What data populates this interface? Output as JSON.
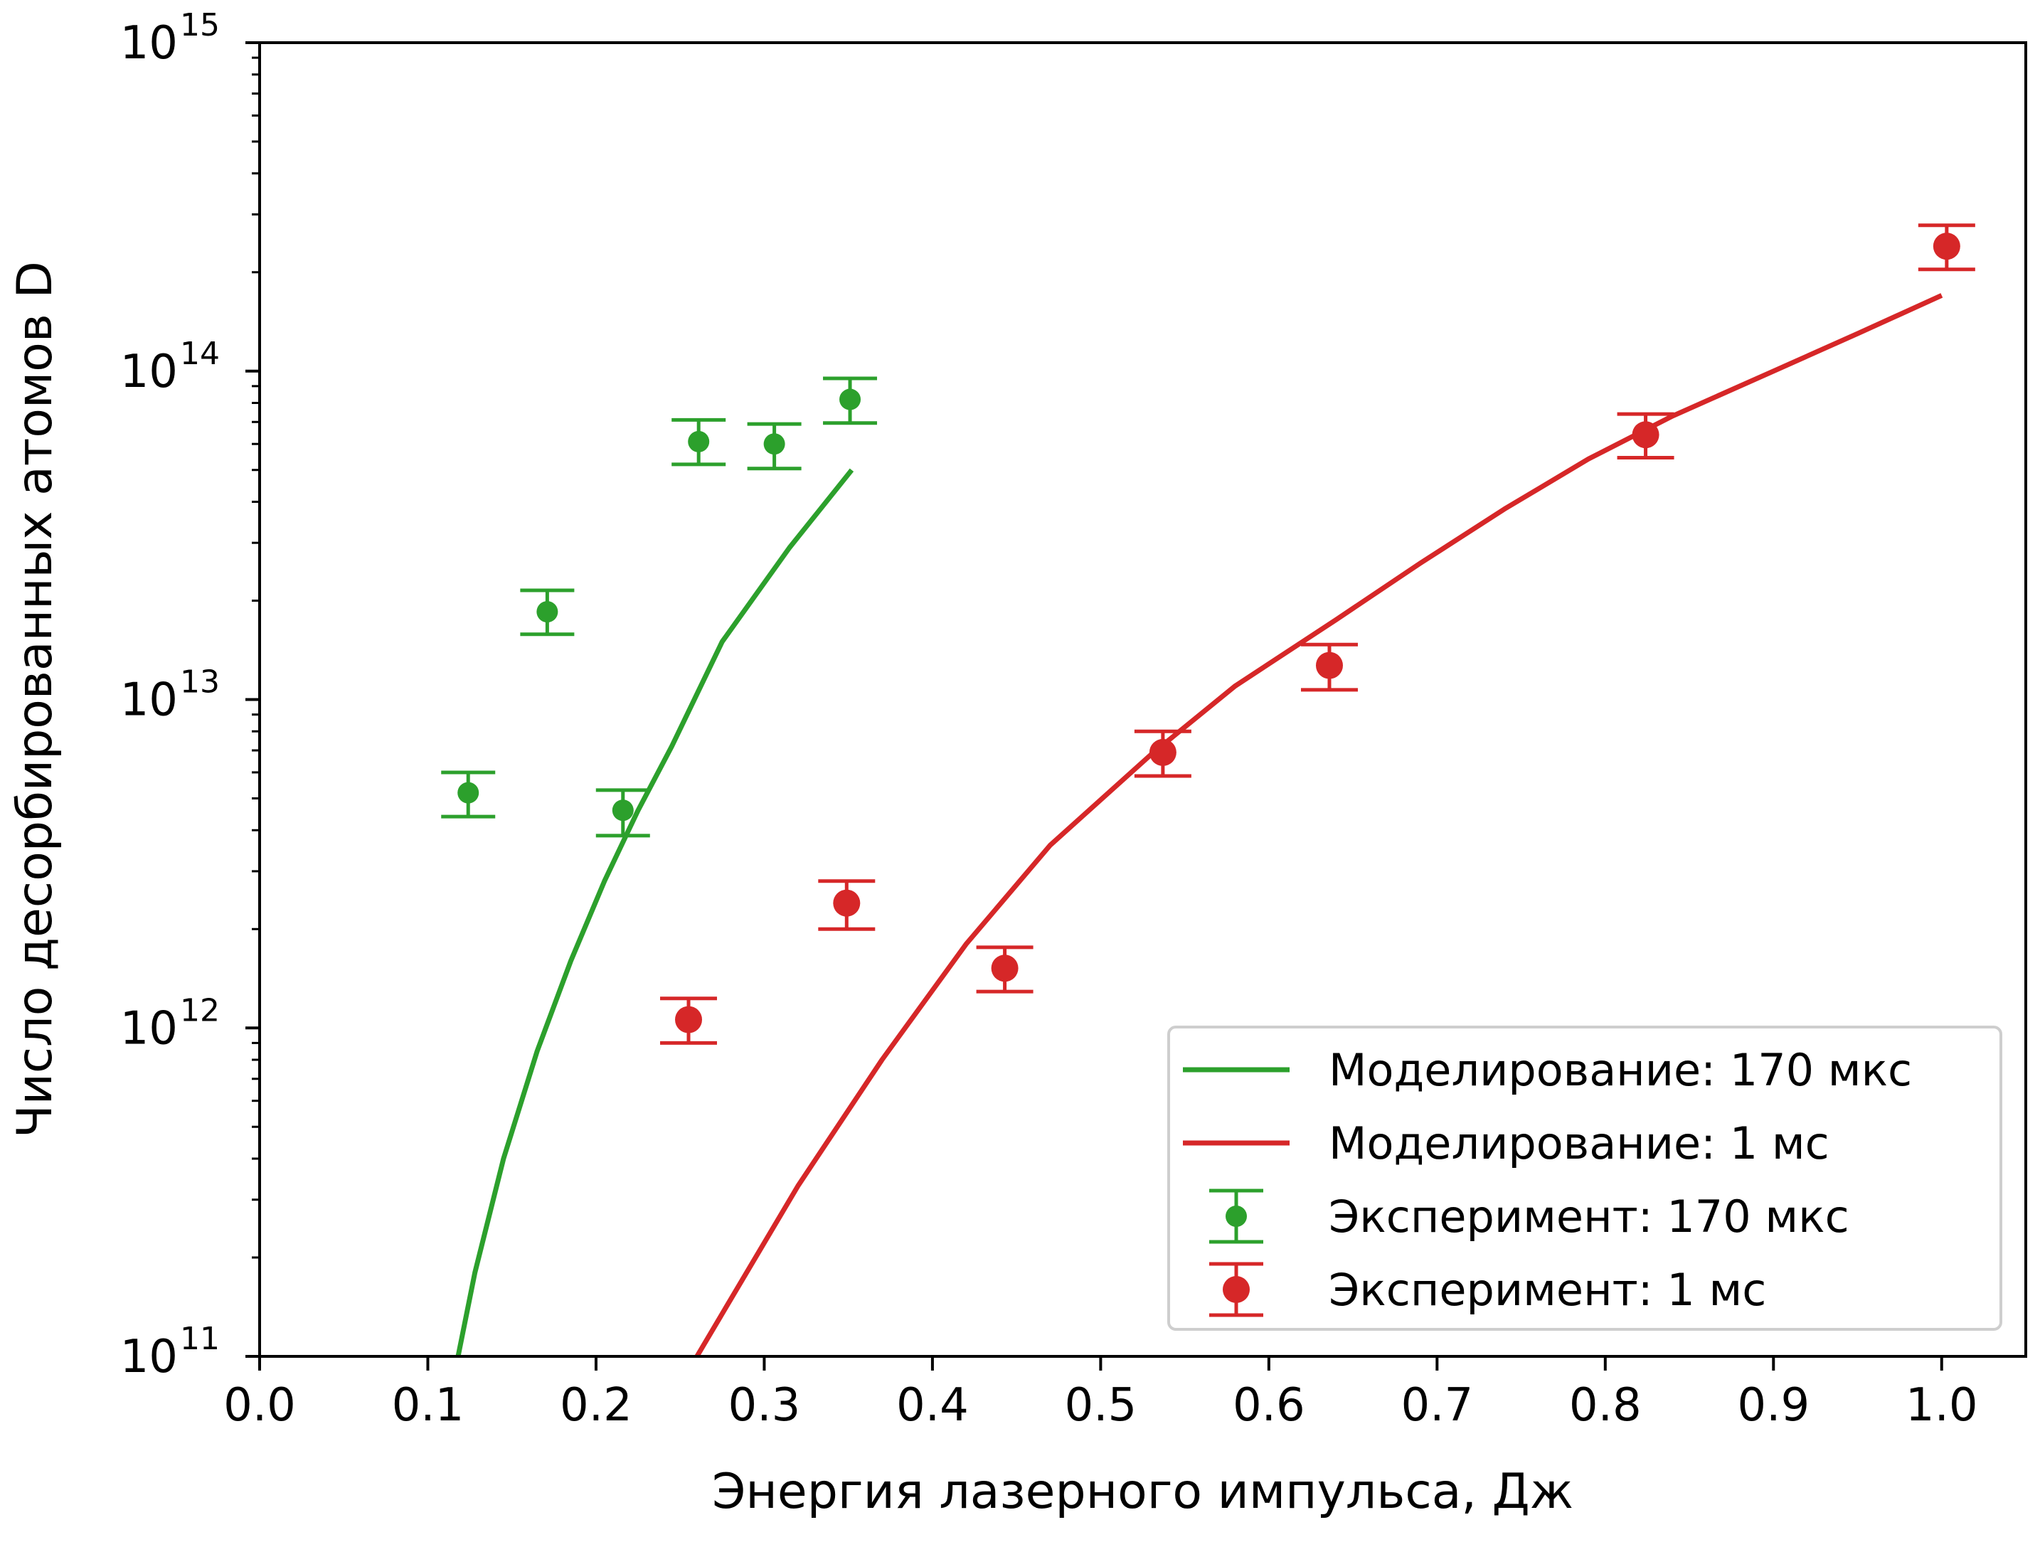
{
  "chart_data": {
    "type": "line",
    "xlabel": "Энергия лазерного импульса, Дж",
    "ylabel": "Число десорбированных атомов D",
    "xlim": [
      0.0,
      1.05
    ],
    "ylim": [
      100000000000.0,
      1000000000000000.0
    ],
    "yscale": "log",
    "grid": false,
    "legend_position": "bottom-right",
    "x_ticks": [
      {
        "value": 0.0,
        "label": "0.0"
      },
      {
        "value": 0.1,
        "label": "0.1"
      },
      {
        "value": 0.2,
        "label": "0.2"
      },
      {
        "value": 0.3,
        "label": "0.3"
      },
      {
        "value": 0.4,
        "label": "0.4"
      },
      {
        "value": 0.5,
        "label": "0.5"
      },
      {
        "value": 0.6,
        "label": "0.6"
      },
      {
        "value": 0.7,
        "label": "0.7"
      },
      {
        "value": 0.8,
        "label": "0.8"
      },
      {
        "value": 0.9,
        "label": "0.9"
      },
      {
        "value": 1.0,
        "label": "1.0"
      }
    ],
    "y_ticks": [
      {
        "value": 100000000000.0,
        "base": "10",
        "exp": "11"
      },
      {
        "value": 1000000000000.0,
        "base": "10",
        "exp": "12"
      },
      {
        "value": 10000000000000.0,
        "base": "10",
        "exp": "13"
      },
      {
        "value": 100000000000000.0,
        "base": "10",
        "exp": "14"
      },
      {
        "value": 1000000000000000.0,
        "base": "10",
        "exp": "15"
      }
    ],
    "series": [
      {
        "name": "Моделирование: 170 мкс",
        "kind": "line",
        "color": "#2ca02c",
        "x": [
          0.118,
          0.128,
          0.145,
          0.165,
          0.185,
          0.205,
          0.225,
          0.245,
          0.275,
          0.315,
          0.352
        ],
        "y": [
          100000000000.0,
          180000000000.0,
          400000000000.0,
          850000000000.0,
          1600000000000.0,
          2800000000000.0,
          4600000000000.0,
          7200000000000.0,
          15000000000000.0,
          29000000000000.0,
          50000000000000.0
        ]
      },
      {
        "name": "Моделирование: 1 мс",
        "kind": "line",
        "color": "#d62728",
        "x": [
          0.26,
          0.32,
          0.37,
          0.42,
          0.47,
          0.53,
          0.58,
          0.64,
          0.69,
          0.74,
          0.79,
          0.84,
          0.9,
          0.95,
          1.0
        ],
        "y": [
          100000000000.0,
          330000000000.0,
          800000000000.0,
          1800000000000.0,
          3600000000000.0,
          6800000000000.0,
          11000000000000.0,
          17500000000000.0,
          26000000000000.0,
          38000000000000.0,
          54000000000000.0,
          73000000000000.0,
          100000000000000.0,
          130000000000000.0,
          170000000000000.0
        ]
      },
      {
        "name": "Эксперимент: 170 мкс",
        "kind": "errorbar",
        "color": "#2ca02c",
        "points": [
          {
            "x": 0.124,
            "y": 5200000000000.0,
            "ylo": 4400000000000.0,
            "yhi": 6000000000000.0
          },
          {
            "x": 0.171,
            "y": 18500000000000.0,
            "ylo": 15800000000000.0,
            "yhi": 21500000000000.0
          },
          {
            "x": 0.216,
            "y": 4600000000000.0,
            "ylo": 3850000000000.0,
            "yhi": 5300000000000.0
          },
          {
            "x": 0.261,
            "y": 61000000000000.0,
            "ylo": 52000000000000.0,
            "yhi": 71000000000000.0
          },
          {
            "x": 0.306,
            "y": 60000000000000.0,
            "ylo": 50500000000000.0,
            "yhi": 69000000000000.0
          },
          {
            "x": 0.351,
            "y": 82000000000000.0,
            "ylo": 69500000000000.0,
            "yhi": 95000000000000.0
          }
        ]
      },
      {
        "name": "Эксперимент: 1 мс",
        "kind": "errorbar",
        "color": "#d62728",
        "points": [
          {
            "x": 0.255,
            "y": 1060000000000.0,
            "ylo": 900000000000.0,
            "yhi": 1230000000000.0
          },
          {
            "x": 0.349,
            "y": 2400000000000.0,
            "ylo": 2000000000000.0,
            "yhi": 2800000000000.0
          },
          {
            "x": 0.443,
            "y": 1520000000000.0,
            "ylo": 1290000000000.0,
            "yhi": 1760000000000.0
          },
          {
            "x": 0.537,
            "y": 6900000000000.0,
            "ylo": 5850000000000.0,
            "yhi": 8000000000000.0
          },
          {
            "x": 0.636,
            "y": 12700000000000.0,
            "ylo": 10700000000000.0,
            "yhi": 14700000000000.0
          },
          {
            "x": 0.824,
            "y": 64000000000000.0,
            "ylo": 54500000000000.0,
            "yhi": 74000000000000.0
          },
          {
            "x": 1.003,
            "y": 240000000000000.0,
            "ylo": 204000000000000.0,
            "yhi": 278000000000000.0
          }
        ]
      }
    ]
  }
}
